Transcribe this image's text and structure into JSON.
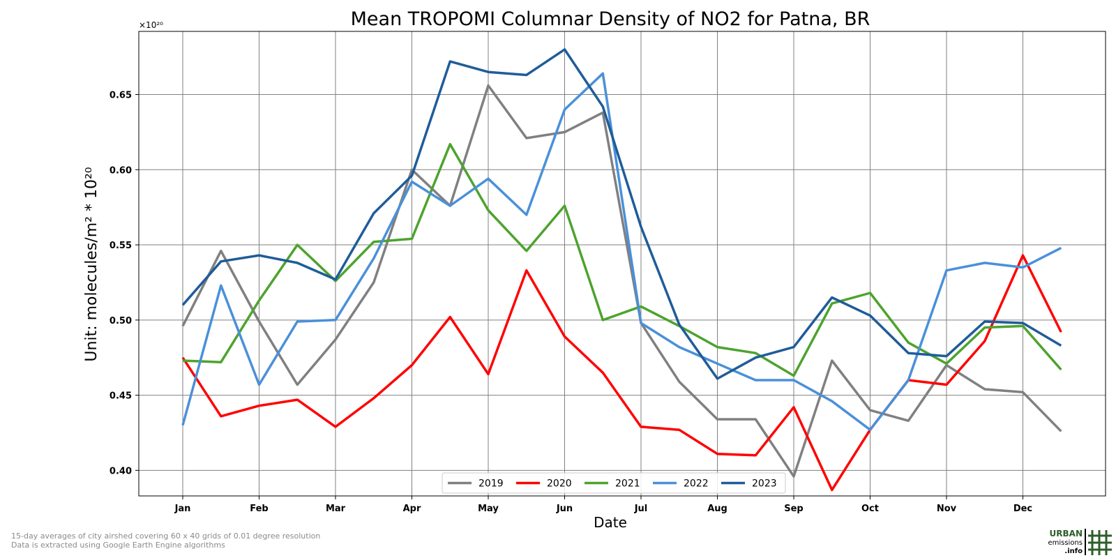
{
  "chart_data": {
    "type": "line",
    "title": "Mean TROPOMI Columnar Density of NO2 for Patna, BR",
    "xlabel": "Date",
    "ylabel": "Unit: molecules/m² * 10²⁰",
    "y_multiplier": "×10²⁰",
    "ylim": [
      0.383,
      0.692
    ],
    "yticks": [
      0.4,
      0.45,
      0.5,
      0.55,
      0.6,
      0.65
    ],
    "ytick_labels": [
      "0.40",
      "0.45",
      "0.50",
      "0.55",
      "0.60",
      "0.65"
    ],
    "month_ticks": [
      "Jan",
      "Feb",
      "Mar",
      "Apr",
      "May",
      "Jun",
      "Jul",
      "Aug",
      "Sep",
      "Oct",
      "Nov",
      "Dec"
    ],
    "x": [
      "Jan 1",
      "Jan 16",
      "Feb 1",
      "Feb 16",
      "Mar 1",
      "Mar 16",
      "Apr 1",
      "Apr 16",
      "May 1",
      "May 16",
      "Jun 1",
      "Jun 16",
      "Jul 1",
      "Jul 16",
      "Aug 1",
      "Aug 16",
      "Sep 1",
      "Sep 16",
      "Oct 1",
      "Oct 16",
      "Nov 1",
      "Nov 16",
      "Dec 1",
      "Dec 16"
    ],
    "grid": true,
    "legend_position": "bottom-center",
    "series": [
      {
        "name": "2019",
        "color": "#808080",
        "values": [
          0.496,
          0.546,
          0.499,
          0.457,
          0.487,
          0.525,
          0.6,
          0.576,
          0.656,
          0.621,
          0.625,
          0.638,
          0.498,
          0.459,
          0.434,
          0.434,
          0.396,
          0.473,
          0.44,
          0.433,
          0.47,
          0.454,
          0.452,
          0.426
        ]
      },
      {
        "name": "2020",
        "color": "#ff0000",
        "values": [
          0.475,
          0.436,
          0.443,
          0.447,
          0.429,
          0.448,
          0.47,
          0.502,
          0.464,
          0.533,
          0.489,
          0.465,
          0.429,
          0.427,
          0.411,
          0.41,
          0.442,
          0.387,
          0.427,
          0.46,
          0.457,
          0.486,
          0.543,
          0.492
        ]
      },
      {
        "name": "2021",
        "color": "#4da32e",
        "values": [
          0.473,
          0.472,
          0.513,
          0.55,
          0.526,
          0.552,
          0.554,
          0.617,
          0.573,
          0.546,
          0.576,
          0.5,
          0.509,
          0.496,
          0.482,
          0.478,
          0.463,
          0.511,
          0.518,
          0.485,
          0.471,
          0.495,
          0.496,
          0.467
        ]
      },
      {
        "name": "2022",
        "color": "#4a90d9",
        "values": [
          0.43,
          0.523,
          0.457,
          0.499,
          0.5,
          0.541,
          0.592,
          0.576,
          0.594,
          0.57,
          0.64,
          0.664,
          0.498,
          0.482,
          0.471,
          0.46,
          0.46,
          0.446,
          0.427,
          0.46,
          0.533,
          0.538,
          0.535,
          0.548
        ]
      },
      {
        "name": "2023",
        "color": "#1f5c99",
        "values": [
          0.51,
          0.539,
          0.543,
          0.538,
          0.527,
          0.571,
          0.596,
          0.672,
          0.665,
          0.663,
          0.68,
          0.642,
          0.562,
          0.497,
          0.461,
          0.475,
          0.482,
          0.515,
          0.503,
          0.478,
          0.476,
          0.499,
          0.498,
          0.483
        ]
      }
    ]
  },
  "footnotes": {
    "line1": "15-day averages of city airshed covering 60 x 40 grids of 0.01 degree resolution",
    "line2": "Data is extracted using Google Earth Engine algorithms"
  },
  "logo": {
    "line1": "URBAN",
    "line2": "emissions",
    "line3": ".info",
    "color": "#2e5e2a"
  }
}
